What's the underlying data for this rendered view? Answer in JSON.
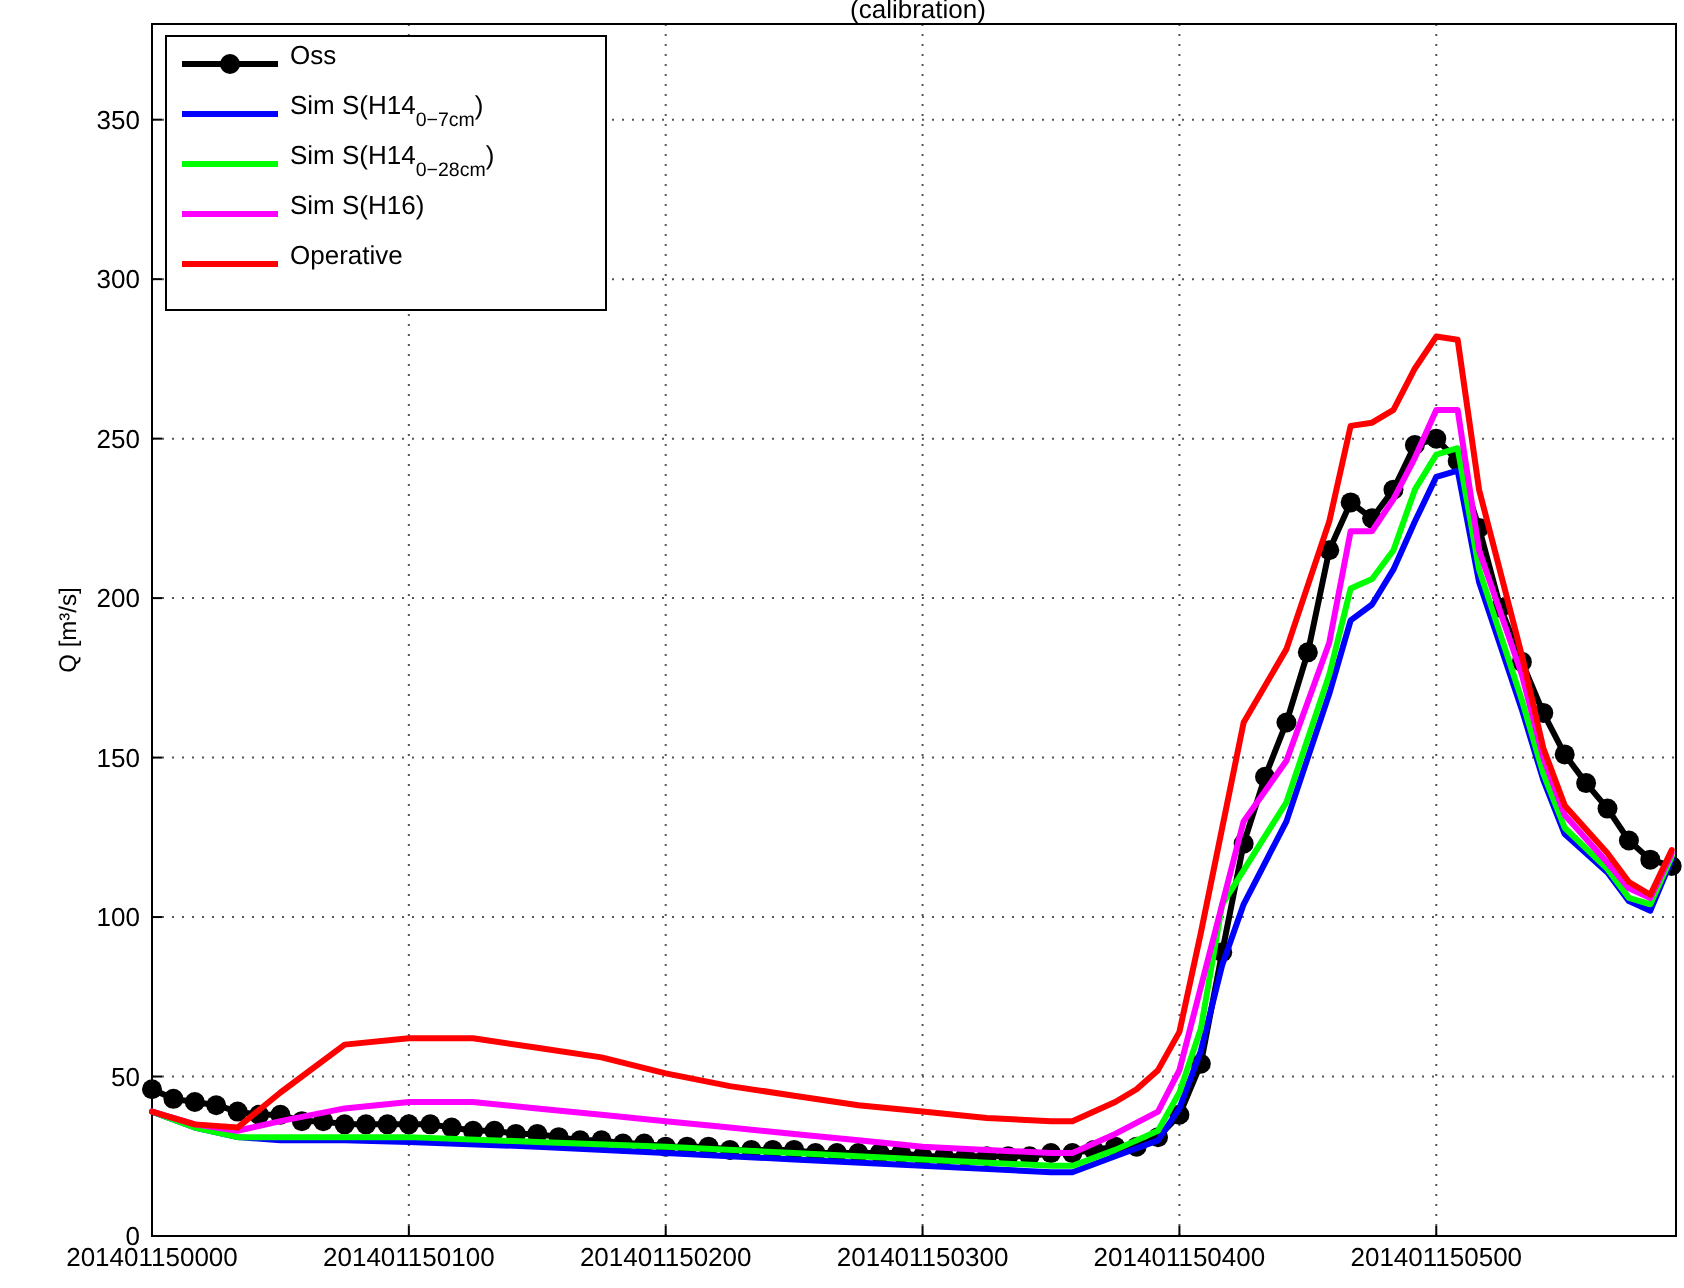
{
  "chart_data": {
    "type": "line",
    "title": "(calibration)",
    "ylabel": "Q [m³/s]",
    "xlim": [
      "2014-01-15T00:00",
      "2014-01-15T05:56"
    ],
    "ylim": [
      0,
      380
    ],
    "xticks": [
      {
        "value": "2014-01-15T00:00",
        "label": "201401150000"
      },
      {
        "value": "2014-01-15T01:00",
        "label": "201401150100"
      },
      {
        "value": "2014-01-15T02:00",
        "label": "201401150200"
      },
      {
        "value": "2014-01-15T03:00",
        "label": "201401150300"
      },
      {
        "value": "2014-01-15T04:00",
        "label": "201401150400"
      },
      {
        "value": "2014-01-15T05:00",
        "label": "201401150500"
      }
    ],
    "yticks": [
      0,
      50,
      100,
      150,
      200,
      250,
      300,
      350
    ],
    "grid": true,
    "legend": "top left",
    "line_style": "solid",
    "series": [
      {
        "name": "Oss",
        "color": "#000000",
        "marker": "circle",
        "x": [
          "2014-01-15T00:00",
          "2014-01-15T00:05",
          "2014-01-15T00:10",
          "2014-01-15T00:15",
          "2014-01-15T00:20",
          "2014-01-15T00:25",
          "2014-01-15T00:30",
          "2014-01-15T00:35",
          "2014-01-15T00:40",
          "2014-01-15T00:45",
          "2014-01-15T00:50",
          "2014-01-15T00:55",
          "2014-01-15T01:00",
          "2014-01-15T01:05",
          "2014-01-15T01:10",
          "2014-01-15T01:15",
          "2014-01-15T01:20",
          "2014-01-15T01:25",
          "2014-01-15T01:30",
          "2014-01-15T01:35",
          "2014-01-15T01:40",
          "2014-01-15T01:45",
          "2014-01-15T01:50",
          "2014-01-15T01:55",
          "2014-01-15T02:00",
          "2014-01-15T02:05",
          "2014-01-15T02:10",
          "2014-01-15T02:15",
          "2014-01-15T02:20",
          "2014-01-15T02:25",
          "2014-01-15T02:30",
          "2014-01-15T02:35",
          "2014-01-15T02:40",
          "2014-01-15T02:45",
          "2014-01-15T02:50",
          "2014-01-15T02:55",
          "2014-01-15T03:00",
          "2014-01-15T03:05",
          "2014-01-15T03:10",
          "2014-01-15T03:15",
          "2014-01-15T03:20",
          "2014-01-15T03:25",
          "2014-01-15T03:30",
          "2014-01-15T03:35",
          "2014-01-15T03:40",
          "2014-01-15T03:45",
          "2014-01-15T03:50",
          "2014-01-15T03:55",
          "2014-01-15T04:00",
          "2014-01-15T04:05",
          "2014-01-15T04:10",
          "2014-01-15T04:15",
          "2014-01-15T04:20",
          "2014-01-15T04:25",
          "2014-01-15T04:30",
          "2014-01-15T04:35",
          "2014-01-15T04:40",
          "2014-01-15T04:45",
          "2014-01-15T04:50",
          "2014-01-15T04:55",
          "2014-01-15T05:00",
          "2014-01-15T05:05",
          "2014-01-15T05:10",
          "2014-01-15T05:15",
          "2014-01-15T05:20",
          "2014-01-15T05:25",
          "2014-01-15T05:30",
          "2014-01-15T05:35",
          "2014-01-15T05:40",
          "2014-01-15T05:45",
          "2014-01-15T05:50",
          "2014-01-15T05:55"
        ],
        "values": [
          46,
          43,
          42,
          41,
          39,
          38,
          38,
          36,
          36,
          35,
          35,
          35,
          35,
          35,
          34,
          33,
          33,
          32,
          32,
          31,
          30,
          30,
          29,
          29,
          28,
          28,
          28,
          27,
          27,
          27,
          27,
          26,
          26,
          26,
          26,
          26,
          25,
          25,
          25,
          25,
          25,
          25,
          26,
          26,
          27,
          28,
          28,
          31,
          38,
          54,
          89,
          123,
          144,
          161,
          183,
          215,
          230,
          225,
          234,
          248,
          250,
          243,
          222,
          197,
          180,
          164,
          151,
          142,
          134,
          124,
          118,
          116
        ]
      },
      {
        "name": "Sim S(H14$_{0−7cm}$)",
        "color": "#0000ff",
        "marker": "none",
        "x": [
          "2014-01-15T00:00",
          "2014-01-15T00:10",
          "2014-01-15T00:20",
          "2014-01-15T00:30",
          "2014-01-15T00:45",
          "2014-01-15T01:00",
          "2014-01-15T01:30",
          "2014-01-15T02:00",
          "2014-01-15T02:30",
          "2014-01-15T03:00",
          "2014-01-15T03:30",
          "2014-01-15T03:35",
          "2014-01-15T03:45",
          "2014-01-15T03:55",
          "2014-01-15T04:00",
          "2014-01-15T04:05",
          "2014-01-15T04:10",
          "2014-01-15T04:15",
          "2014-01-15T04:25",
          "2014-01-15T04:35",
          "2014-01-15T04:40",
          "2014-01-15T04:45",
          "2014-01-15T04:50",
          "2014-01-15T04:55",
          "2014-01-15T05:00",
          "2014-01-15T05:05",
          "2014-01-15T05:10",
          "2014-01-15T05:20",
          "2014-01-15T05:25",
          "2014-01-15T05:30",
          "2014-01-15T05:40",
          "2014-01-15T05:45",
          "2014-01-15T05:50",
          "2014-01-15T05:55"
        ],
        "values": [
          39,
          34,
          31,
          30,
          30,
          29.5,
          28,
          26,
          24,
          22,
          20,
          20,
          25,
          30,
          40,
          58,
          85,
          104,
          130,
          170,
          193,
          198,
          209,
          224,
          238,
          240,
          205,
          165,
          143,
          126,
          114,
          105,
          102,
          118
        ]
      },
      {
        "name": "Sim S(H14$_{0−28cm}$)",
        "color": "#00ff00",
        "marker": "none",
        "x": [
          "2014-01-15T00:00",
          "2014-01-15T00:10",
          "2014-01-15T00:20",
          "2014-01-15T00:30",
          "2014-01-15T00:45",
          "2014-01-15T01:00",
          "2014-01-15T01:30",
          "2014-01-15T02:00",
          "2014-01-15T02:30",
          "2014-01-15T03:00",
          "2014-01-15T03:30",
          "2014-01-15T03:35",
          "2014-01-15T03:45",
          "2014-01-15T03:55",
          "2014-01-15T04:00",
          "2014-01-15T04:05",
          "2014-01-15T04:10",
          "2014-01-15T04:25",
          "2014-01-15T04:35",
          "2014-01-15T04:40",
          "2014-01-15T04:45",
          "2014-01-15T04:50",
          "2014-01-15T04:55",
          "2014-01-15T05:00",
          "2014-01-15T05:05",
          "2014-01-15T05:10",
          "2014-01-15T05:20",
          "2014-01-15T05:25",
          "2014-01-15T05:30",
          "2014-01-15T05:40",
          "2014-01-15T05:45",
          "2014-01-15T05:50",
          "2014-01-15T05:55"
        ],
        "values": [
          39,
          34,
          31,
          31,
          31,
          31,
          29.5,
          28,
          26,
          24,
          22,
          22,
          27,
          33,
          45,
          65,
          104,
          136,
          176,
          203,
          206,
          215,
          234,
          245,
          247,
          209,
          168,
          145,
          128,
          115,
          106,
          104,
          119
        ]
      },
      {
        "name": "Sim S(H16)",
        "color": "#ff00ff",
        "marker": "none",
        "x": [
          "2014-01-15T00:00",
          "2014-01-15T00:10",
          "2014-01-15T00:20",
          "2014-01-15T00:30",
          "2014-01-15T00:45",
          "2014-01-15T01:00",
          "2014-01-15T01:15",
          "2014-01-15T01:30",
          "2014-01-15T01:45",
          "2014-01-15T02:00",
          "2014-01-15T02:15",
          "2014-01-15T02:30",
          "2014-01-15T02:45",
          "2014-01-15T03:00",
          "2014-01-15T03:15",
          "2014-01-15T03:30",
          "2014-01-15T03:35",
          "2014-01-15T03:45",
          "2014-01-15T03:55",
          "2014-01-15T04:00",
          "2014-01-15T04:05",
          "2014-01-15T04:10",
          "2014-01-15T04:15",
          "2014-01-15T04:25",
          "2014-01-15T04:35",
          "2014-01-15T04:40",
          "2014-01-15T04:45",
          "2014-01-15T04:50",
          "2014-01-15T04:55",
          "2014-01-15T05:00",
          "2014-01-15T05:05",
          "2014-01-15T05:10",
          "2014-01-15T05:20",
          "2014-01-15T05:25",
          "2014-01-15T05:30",
          "2014-01-15T05:40",
          "2014-01-15T05:45",
          "2014-01-15T05:50",
          "2014-01-15T05:55"
        ],
        "values": [
          39,
          35,
          33,
          36,
          40,
          42,
          42,
          40,
          38,
          36,
          34,
          32,
          30,
          28,
          27,
          26,
          26,
          32,
          39,
          52,
          78,
          104,
          130,
          149,
          186,
          221,
          221,
          231,
          244,
          259,
          259,
          215,
          176,
          150,
          132,
          117,
          109,
          106,
          120
        ]
      },
      {
        "name": "Operative",
        "color": "#ff0000",
        "marker": "none",
        "x": [
          "2014-01-15T00:00",
          "2014-01-15T00:10",
          "2014-01-15T00:20",
          "2014-01-15T00:30",
          "2014-01-15T00:45",
          "2014-01-15T01:00",
          "2014-01-15T01:15",
          "2014-01-15T01:30",
          "2014-01-15T01:45",
          "2014-01-15T02:00",
          "2014-01-15T02:15",
          "2014-01-15T02:30",
          "2014-01-15T02:45",
          "2014-01-15T03:00",
          "2014-01-15T03:15",
          "2014-01-15T03:30",
          "2014-01-15T03:35",
          "2014-01-15T03:45",
          "2014-01-15T03:50",
          "2014-01-15T03:55",
          "2014-01-15T04:00",
          "2014-01-15T04:05",
          "2014-01-15T04:15",
          "2014-01-15T04:25",
          "2014-01-15T04:35",
          "2014-01-15T04:40",
          "2014-01-15T04:45",
          "2014-01-15T04:50",
          "2014-01-15T04:55",
          "2014-01-15T05:00",
          "2014-01-15T05:05",
          "2014-01-15T05:10",
          "2014-01-15T05:20",
          "2014-01-15T05:25",
          "2014-01-15T05:30",
          "2014-01-15T05:40",
          "2014-01-15T05:45",
          "2014-01-15T05:50",
          "2014-01-15T05:55"
        ],
        "values": [
          39,
          35,
          34,
          45,
          60,
          62,
          62,
          59,
          56,
          51,
          47,
          44,
          41,
          39,
          37,
          36,
          36,
          42,
          46,
          52,
          64,
          95,
          161,
          184,
          224,
          254,
          255,
          259,
          272,
          282,
          281,
          234,
          182,
          153,
          135,
          120,
          111,
          107,
          121
        ]
      }
    ]
  }
}
